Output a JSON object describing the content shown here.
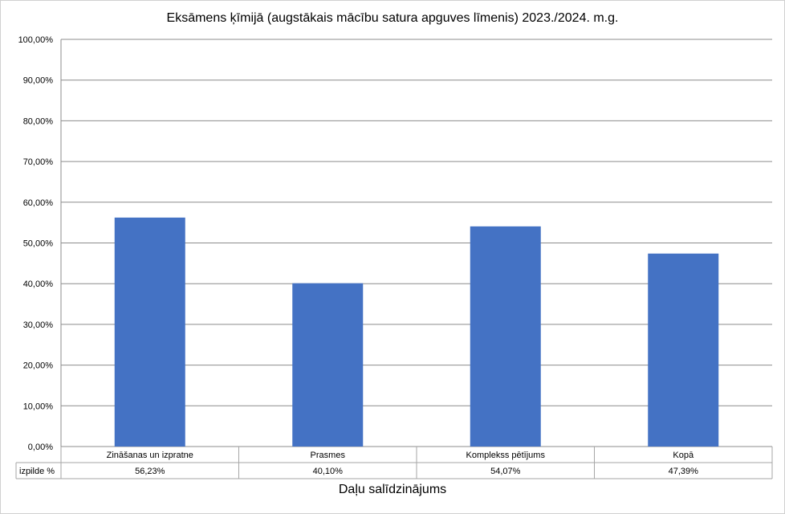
{
  "chart_data": {
    "type": "bar",
    "title": "Eksāmens ķīmijā (augstākais mācību satura apguves līmenis) 2023./2024. m.g.",
    "xlabel": "Daļu salīdzinājums",
    "ylabel": "",
    "ylim": [
      0,
      100
    ],
    "y_ticks": [
      "0,00%",
      "10,00%",
      "20,00%",
      "30,00%",
      "40,00%",
      "50,00%",
      "60,00%",
      "70,00%",
      "80,00%",
      "90,00%",
      "100,00%"
    ],
    "categories": [
      "Zināšanas un izpratne",
      "Prasmes",
      "Komplekss pētījums",
      "Kopā"
    ],
    "series": [
      {
        "name": "izpilde %",
        "values": [
          56.23,
          40.1,
          54.07,
          47.39
        ],
        "labels": [
          "56,23%",
          "40,10%",
          "54,07%",
          "47,39%"
        ],
        "color": "#4472C4"
      }
    ],
    "grid": true,
    "data_table": true
  }
}
